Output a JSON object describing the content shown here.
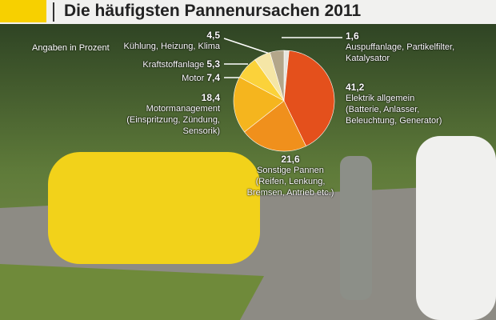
{
  "chart_data": {
    "type": "pie",
    "title": "Die häufigsten Pannenursachen 2011",
    "subtitle": "Angaben in Prozent",
    "categories": [
      "Auspuffanlage, Partikelfilter, Katalysator",
      "Elektrik allgemein (Batterie, Anlasser, Beleuchtung, Generator)",
      "Sonstige Pannen (Reifen, Lenkung, Bremsen, Antrieb etc.)",
      "Motormanagement (Einspritzung, Zündung, Sensorik)",
      "Motor",
      "Kraftstoffanlage",
      "Kühlung, Heizung, Klima"
    ],
    "values": [
      1.6,
      41.2,
      21.6,
      18.4,
      7.4,
      5.3,
      4.5
    ],
    "value_labels": [
      "1,6",
      "41,2",
      "21,6",
      "18,4",
      "7,4",
      "5,3",
      "4,5"
    ],
    "colors": [
      "#e6e4de",
      "#e4501c",
      "#f0901c",
      "#f5b51e",
      "#fbd23a",
      "#f5e6a6",
      "#b3a68a"
    ]
  }
}
